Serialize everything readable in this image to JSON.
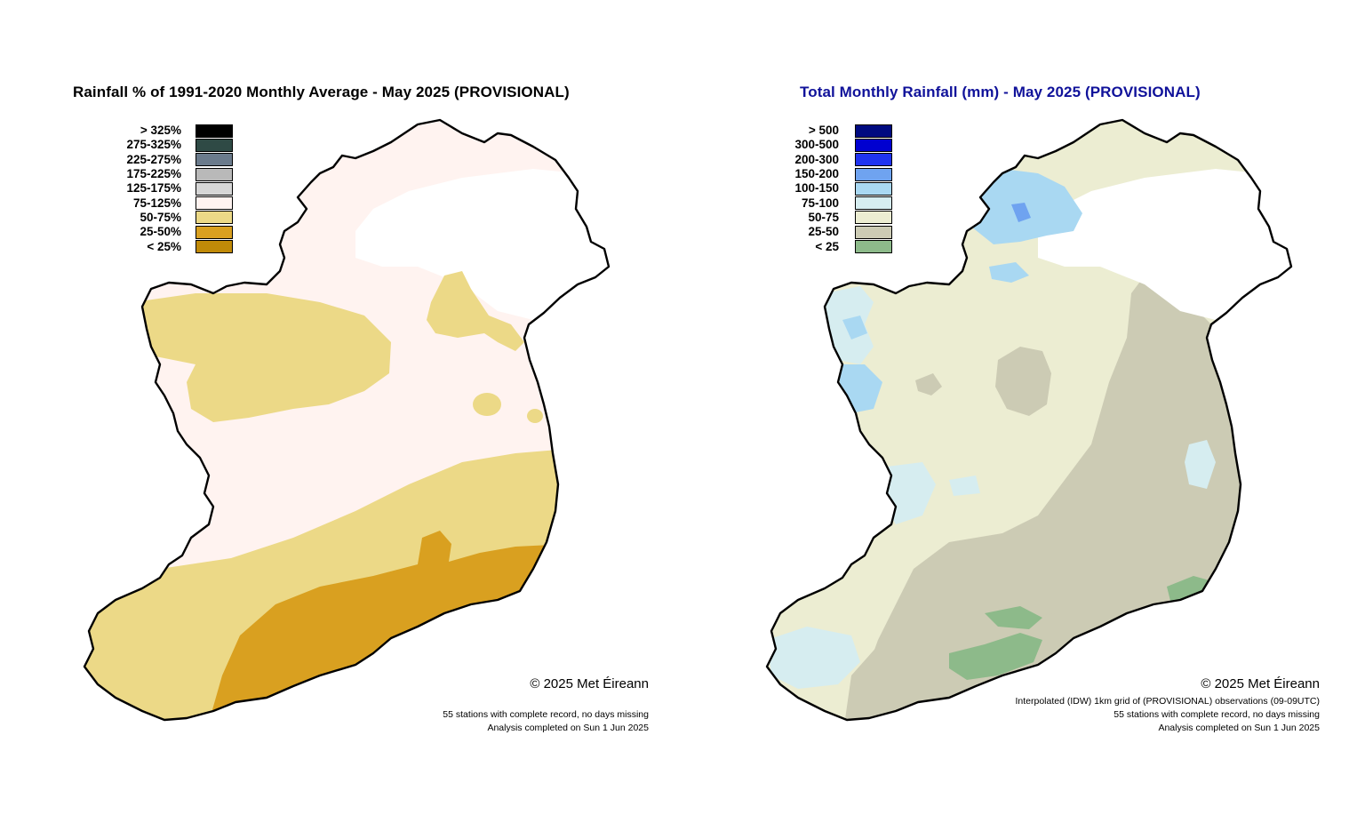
{
  "left": {
    "title": "Rainfall % of  1991-2020  Monthly Average - May 2025  (PROVISIONAL)",
    "legend": [
      {
        "label": "> 325%",
        "color": "#000000"
      },
      {
        "label": "275-325%",
        "color": "#2f4a45"
      },
      {
        "label": "225-275%",
        "color": "#6b7b8c"
      },
      {
        "label": "175-225%",
        "color": "#b9b9b9"
      },
      {
        "label": "125-175%",
        "color": "#d6d6d6"
      },
      {
        "label": "75-125%",
        "color": "#fff3f0"
      },
      {
        "label": "50-75%",
        "color": "#ecd987"
      },
      {
        "label": "25-50%",
        "color": "#d9a020"
      },
      {
        "label": "< 25%",
        "color": "#c08a08"
      }
    ],
    "copyright": "© 2025 Met Éireann",
    "footnotes": [
      "55 stations with complete record, no days missing",
      "Analysis completed on Sun 1 Jun 2025"
    ]
  },
  "right": {
    "title": "Total Monthly Rainfall (mm) - May 2025  (PROVISIONAL)",
    "title_color": "#10129a",
    "legend": [
      {
        "label": "> 500",
        "color": "#000a80"
      },
      {
        "label": "300-500",
        "color": "#0000d0"
      },
      {
        "label": "200-300",
        "color": "#1f33f0"
      },
      {
        "label": "150-200",
        "color": "#6fa3f0"
      },
      {
        "label": "100-150",
        "color": "#a9d8f2"
      },
      {
        "label": "75-100",
        "color": "#d6edf0"
      },
      {
        "label": "50-75",
        "color": "#ecedd2"
      },
      {
        "label": "25-50",
        "color": "#cccbb4"
      },
      {
        "label": "< 25",
        "color": "#8dba8a"
      }
    ],
    "copyright": "© 2025 Met Éireann",
    "footnotes": [
      "Interpolated (IDW) 1km grid of  (PROVISIONAL) observations (09-09UTC)",
      "55 stations with complete record, no days missing",
      "Analysis completed on Sun 1 Jun 2025"
    ]
  }
}
